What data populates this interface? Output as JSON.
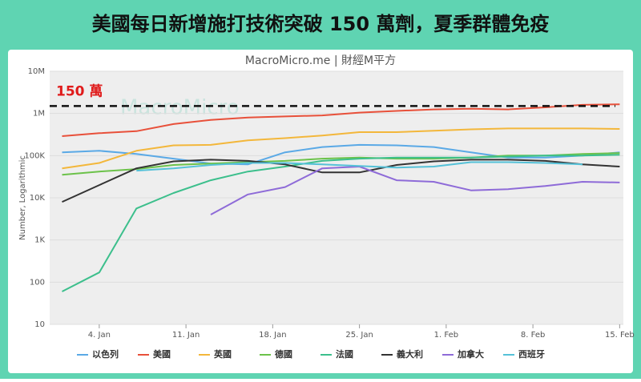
{
  "chart_data": {
    "type": "line",
    "title": "美國每日新增施打技術突破 150 萬劑，夏季群體免疫",
    "subtitle": "MacroMicro.me | 財經M平方",
    "watermark": "MacroMicro",
    "y_label": "Number, Logarithmic",
    "log_scale": true,
    "reference": {
      "value": 1500000,
      "label": "150 萬",
      "color": "#e01b1b"
    },
    "x": [
      1,
      4,
      7,
      10,
      13,
      16,
      19,
      22,
      25,
      28,
      31,
      34,
      37,
      40,
      43,
      46
    ],
    "xlim": [
      0,
      46.3
    ],
    "xticks": [
      {
        "value": 4,
        "label": "4. Jan"
      },
      {
        "value": 11,
        "label": "11. Jan"
      },
      {
        "value": 18,
        "label": "18. Jan"
      },
      {
        "value": 25,
        "label": "25. Jan"
      },
      {
        "value": 32,
        "label": "1. Feb"
      },
      {
        "value": 39,
        "label": "8. Feb"
      },
      {
        "value": 46,
        "label": "15. Feb"
      }
    ],
    "ylim": [
      10,
      10000000
    ],
    "yticks": [
      10,
      100,
      {
        "value": 1000,
        "label": "1K"
      },
      {
        "value": 10000,
        "label": "10K"
      },
      {
        "value": 100000,
        "label": "100K"
      },
      {
        "value": 1000000,
        "label": "1M"
      },
      {
        "value": 10000000,
        "label": "10M"
      }
    ],
    "series": [
      {
        "name": "以色列",
        "color": "#5aa9e6",
        "values": [
          120000,
          130000,
          110000,
          85000,
          65000,
          62000,
          120000,
          160000,
          180000,
          175000,
          160000,
          120000,
          90000,
          90000,
          100000,
          120000
        ]
      },
      {
        "name": "美國",
        "color": "#e8503a",
        "values": [
          290000,
          340000,
          380000,
          560000,
          700000,
          800000,
          850000,
          900000,
          1050000,
          1150000,
          1250000,
          1300000,
          1250000,
          1400000,
          1600000,
          1650000
        ]
      },
      {
        "name": "英國",
        "color": "#f3b73b",
        "values": [
          50000,
          67000,
          130000,
          175000,
          180000,
          230000,
          260000,
          300000,
          360000,
          360000,
          390000,
          420000,
          440000,
          440000,
          440000,
          430000
        ]
      },
      {
        "name": "德國",
        "color": "#6cc24a",
        "values": [
          35000,
          42000,
          48000,
          60000,
          65000,
          70000,
          75000,
          85000,
          90000,
          85000,
          85000,
          90000,
          100000,
          100000,
          110000,
          115000
        ]
      },
      {
        "name": "法國",
        "color": "#3cbf8c",
        "values": [
          60,
          170,
          5600,
          13000,
          26000,
          42000,
          55000,
          75000,
          85000,
          90000,
          90000,
          90000,
          95000,
          100000,
          100000,
          105000
        ]
      },
      {
        "name": "義大利",
        "color": "#333333",
        "values": [
          8000,
          20000,
          50000,
          73000,
          80000,
          75000,
          62000,
          40000,
          40000,
          60000,
          73000,
          80000,
          80000,
          75000,
          62000,
          55000
        ]
      },
      {
        "name": "加拿大",
        "color": "#8e6bd8",
        "values": [
          null,
          null,
          null,
          null,
          4000,
          12000,
          18000,
          50000,
          55000,
          26000,
          24000,
          15000,
          16000,
          19000,
          24000,
          23000
        ]
      },
      {
        "name": "西班牙",
        "color": "#55c1d8",
        "values": [
          null,
          null,
          44000,
          50000,
          60000,
          67000,
          67000,
          62000,
          57000,
          52000,
          55000,
          70000,
          70000,
          67000,
          62000,
          null
        ]
      }
    ]
  }
}
